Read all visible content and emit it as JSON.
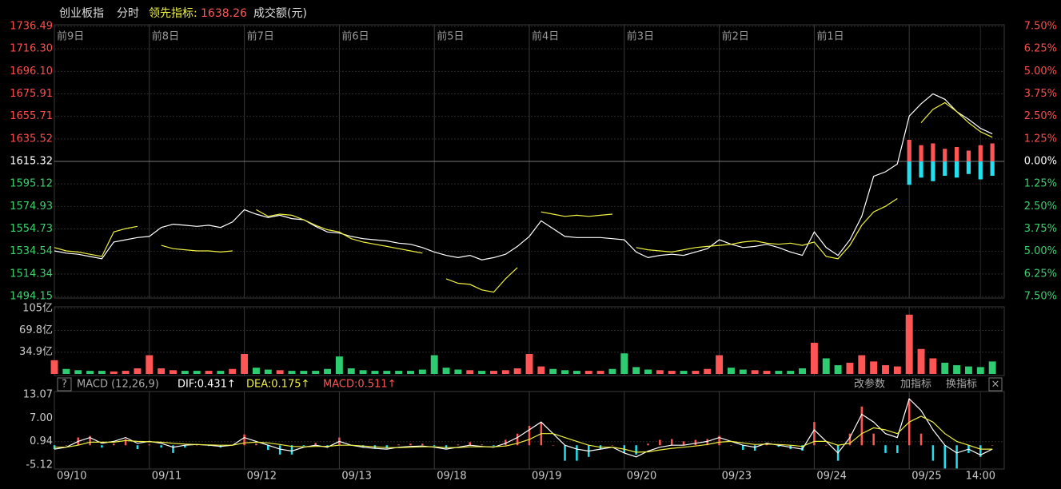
{
  "header": {
    "title": "创业板指",
    "mode": "分时",
    "indicator_label": "领先指标:",
    "indicator_value": 1638.26,
    "amount_label": "成交额(元)"
  },
  "toolbar": {
    "help": "?",
    "name": "MACD (12,26,9)",
    "dif": "DIF:0.431↑",
    "dea": "DEA:0.175↑",
    "macd": "MACD:0.511↑",
    "buttons": [
      "改参数",
      "加指标",
      "换指标"
    ],
    "close": "×"
  },
  "chart_data": [
    {
      "type": "line",
      "categories": [
        "前9日",
        "前8日",
        "前7日",
        "前6日",
        "前5日",
        "前4日",
        "前3日",
        "前2日",
        "前1日",
        null
      ],
      "x": [
        0,
        1,
        2,
        3,
        4,
        5,
        6,
        7,
        8,
        9,
        10,
        11,
        12,
        13,
        14,
        15,
        16,
        17,
        18,
        19,
        20,
        21,
        22,
        23,
        24,
        25,
        26,
        27,
        28,
        29,
        30,
        31,
        32,
        33,
        34,
        35,
        36,
        37,
        38,
        39,
        40,
        41,
        42,
        43,
        44,
        45,
        46,
        47,
        48,
        49,
        50,
        51,
        52,
        53,
        54,
        55,
        56,
        57,
        58,
        59,
        60,
        61,
        62,
        63,
        64,
        65,
        66,
        67,
        68,
        69,
        70,
        71,
        72,
        73,
        74,
        75,
        76,
        77,
        78,
        79
      ],
      "xlim": [
        0,
        80
      ],
      "ylim": [
        1494.15,
        1736.49
      ],
      "yticks": [
        1736.49,
        {
          "value": 1716.3,
          "label": "1716.30"
        },
        {
          "value": 1696.1,
          "label": "1696.10"
        },
        1675.91,
        1655.71,
        1635.52,
        1615.32,
        1595.12,
        1574.93,
        1554.73,
        1534.54,
        1514.34,
        1494.15
      ],
      "y2lim": [
        -7.5,
        7.5
      ],
      "y2ticks": [
        {
          "value": 7.5,
          "label": "7.50%"
        },
        {
          "value": 6.25,
          "label": "6.25%"
        },
        {
          "value": 5,
          "label": "5.00%"
        },
        {
          "value": 3.75,
          "label": "3.75%"
        },
        {
          "value": 2.5,
          "label": "2.50%"
        },
        {
          "value": 1.25,
          "label": "1.25%"
        },
        {
          "value": 0,
          "label": "0.00%"
        },
        {
          "value": -1.25,
          "label": "1.25%"
        },
        {
          "value": -2.5,
          "label": "2.50%"
        },
        {
          "value": -3.75,
          "label": "3.75%"
        },
        {
          "value": -5,
          "label": "5.00%"
        },
        {
          "value": -6.25,
          "label": "6.25%"
        },
        {
          "value": -7.5,
          "label": "7.50%"
        }
      ],
      "up_color": "#ff4d4d",
      "down_color": "#3bd16f",
      "grid": true,
      "series": [
        {
          "color": "#ffffff",
          "values": [
            1535,
            1533,
            1532,
            1530,
            1528,
            1543,
            1545,
            1547,
            1548,
            1556,
            1559,
            1558,
            1557,
            1558,
            1556,
            1561,
            1572,
            1568,
            1565,
            1567,
            1564,
            1563,
            1557,
            1552,
            1551,
            1548,
            1546,
            1545,
            1544,
            1542,
            1541,
            1538,
            1534,
            1531,
            1529,
            1531,
            1527,
            1529,
            1532,
            1539,
            1548,
            1562,
            1555,
            1548,
            1547,
            1547,
            1547,
            1546,
            1545,
            1534,
            1529,
            1531,
            1532,
            1531,
            1534,
            1537,
            1545,
            1541,
            1538,
            1539,
            1541,
            1538,
            1534,
            1531,
            1552,
            1538,
            1531,
            1545,
            1566,
            1602,
            1606,
            1613,
            1656,
            1667,
            1676,
            1671,
            1660,
            1653,
            1645,
            1640
          ]
        },
        {
          "color": "#f0f040",
          "values": [
            1538,
            1535,
            1534,
            1532,
            1530,
            1552,
            1555,
            1557,
            null,
            1540,
            1537,
            1536,
            1535,
            1535,
            1534,
            1535,
            null,
            1572,
            1566,
            1568,
            1567,
            1563,
            1558,
            1554,
            1552,
            1546,
            1543,
            1541,
            1539,
            1537,
            1535,
            1533,
            null,
            1510,
            1506,
            1505,
            1500,
            1498,
            1510,
            1520,
            null,
            1570,
            1568,
            1566,
            1567,
            1566,
            1567,
            1568,
            null,
            1538,
            1536,
            1535,
            1534,
            1536,
            1538,
            1539,
            1540,
            1541,
            1543,
            1544,
            1542,
            1541,
            1542,
            1540,
            1543,
            1530,
            1528,
            1540,
            1558,
            1570,
            1575,
            1582,
            null,
            1650,
            1662,
            1668,
            1660,
            1650,
            1642,
            1637
          ]
        },
        {
          "axis": "y2",
          "color": "#ff5555",
          "x": [
            72,
            73,
            74,
            75,
            76,
            77,
            78,
            79
          ],
          "values": [
            1.2,
            0.9,
            1.0,
            0.7,
            0.8,
            0.6,
            0.9,
            1.0
          ]
        },
        {
          "axis": "y2",
          "color": "#22e0f0",
          "x": [
            72,
            73,
            74,
            75,
            76,
            77,
            78,
            79
          ],
          "values": [
            -1.3,
            -0.9,
            -1.1,
            -0.8,
            -0.9,
            -0.7,
            -1.0,
            -0.8
          ]
        }
      ]
    },
    {
      "type": "bar",
      "x": [
        0,
        1,
        2,
        3,
        4,
        5,
        6,
        7,
        8,
        9,
        10,
        11,
        12,
        13,
        14,
        15,
        16,
        17,
        18,
        19,
        20,
        21,
        22,
        23,
        24,
        25,
        26,
        27,
        28,
        29,
        30,
        31,
        32,
        33,
        34,
        35,
        36,
        37,
        38,
        39,
        40,
        41,
        42,
        43,
        44,
        45,
        46,
        47,
        48,
        49,
        50,
        51,
        52,
        53,
        54,
        55,
        56,
        57,
        58,
        59,
        60,
        61,
        62,
        63,
        64,
        65,
        66,
        67,
        68,
        69,
        70,
        71,
        72,
        73,
        74,
        75,
        76,
        77,
        78,
        79
      ],
      "xlim": [
        0,
        80
      ],
      "ylim": [
        0,
        105
      ],
      "yticks": [
        {
          "value": 105,
          "label": "105亿"
        },
        {
          "value": 69.8,
          "label": "69.8亿"
        },
        {
          "value": 34.9,
          "label": "34.9亿"
        }
      ],
      "up_color": "#ff5555",
      "down_color": "#2ecc71",
      "values": [
        22,
        8,
        6,
        5,
        5,
        4,
        5,
        9,
        30,
        9,
        6,
        5,
        5,
        5,
        5,
        8,
        32,
        10,
        7,
        6,
        5,
        5,
        5,
        8,
        28,
        9,
        6,
        5,
        5,
        5,
        5,
        7,
        30,
        10,
        7,
        6,
        5,
        5,
        6,
        9,
        32,
        12,
        8,
        6,
        5,
        5,
        5,
        8,
        33,
        11,
        7,
        6,
        5,
        5,
        5,
        8,
        30,
        10,
        7,
        6,
        5,
        5,
        5,
        9,
        50,
        25,
        14,
        18,
        30,
        20,
        14,
        12,
        95,
        40,
        25,
        18,
        14,
        12,
        11,
        20
      ]
    },
    {
      "type": "line",
      "x": [
        0,
        1,
        2,
        3,
        4,
        5,
        6,
        7,
        8,
        9,
        10,
        11,
        12,
        13,
        14,
        15,
        16,
        17,
        18,
        19,
        20,
        21,
        22,
        23,
        24,
        25,
        26,
        27,
        28,
        29,
        30,
        31,
        32,
        33,
        34,
        35,
        36,
        37,
        38,
        39,
        40,
        41,
        42,
        43,
        44,
        45,
        46,
        47,
        48,
        49,
        50,
        51,
        52,
        53,
        54,
        55,
        56,
        57,
        58,
        59,
        60,
        61,
        62,
        63,
        64,
        65,
        66,
        67,
        68,
        69,
        70,
        71,
        72,
        73,
        74,
        75,
        76,
        77,
        78,
        79
      ],
      "xlim": [
        0,
        80
      ],
      "xticks": [
        {
          "value": 0,
          "label": "09/10"
        },
        {
          "value": 8,
          "label": "09/11"
        },
        {
          "value": 16,
          "label": "09/12"
        },
        {
          "value": 24,
          "label": "09/13"
        },
        {
          "value": 32,
          "label": "09/18"
        },
        {
          "value": 40,
          "label": "09/19"
        },
        {
          "value": 48,
          "label": "09/20"
        },
        {
          "value": 56,
          "label": "09/23"
        },
        {
          "value": 64,
          "label": "09/24"
        },
        {
          "value": 72,
          "label": "09/25"
        },
        {
          "value": 78,
          "label": "14:00"
        }
      ],
      "ylim": [
        -5.73,
        13.47
      ],
      "yticks": [
        13.07,
        {
          "value": 7,
          "label": "7.00"
        },
        0.94,
        -5.12
      ],
      "series": [
        {
          "type": "bar",
          "up_color": "#ff5555",
          "down_color": "#22e0f0",
          "values": [
            -1,
            0,
            2,
            2.4,
            -0.6,
            0.4,
            1.6,
            -1,
            0.2,
            -0.6,
            -2,
            -0.6,
            0,
            -0.2,
            -0.6,
            0,
            2.8,
            0.4,
            -1.2,
            -2.4,
            -2.4,
            -0.2,
            0.6,
            -0.4,
            2,
            0,
            -0.6,
            -0.8,
            -0.8,
            0.2,
            0.4,
            0.4,
            -0.2,
            -0.8,
            0.2,
            0.8,
            0.2,
            -0.2,
            1.4,
            3,
            5,
            6,
            0,
            -4,
            -4,
            -3,
            -1,
            0,
            -2,
            -2.4,
            0.4,
            1.4,
            1.6,
            1,
            1.4,
            1.6,
            2.4,
            0,
            -1.2,
            -1.4,
            0.4,
            -0.4,
            -1,
            -1.4,
            6,
            0,
            -4,
            3,
            10,
            3,
            -2,
            -2,
            12,
            3,
            -4,
            -6,
            -6,
            -2,
            -3,
            0
          ]
        },
        {
          "color": "#ffffff",
          "values": [
            -1,
            -0.5,
            1,
            2,
            0.5,
            1,
            2,
            0.5,
            1,
            0.5,
            -0.5,
            0,
            0.2,
            0,
            -0.3,
            0,
            2,
            1,
            0,
            -1,
            -1.5,
            -0.5,
            0,
            -0.5,
            1,
            0,
            -0.5,
            -0.8,
            -1,
            -0.5,
            -0.3,
            -0.2,
            -0.5,
            -1,
            -0.5,
            0,
            -0.3,
            -0.5,
            0.5,
            2,
            4,
            6,
            3,
            0,
            -1,
            -1.5,
            -1,
            -0.5,
            -2,
            -3,
            -1.5,
            -0.5,
            0,
            0,
            0.5,
            1,
            2,
            1,
            0,
            -0.5,
            0.5,
            0,
            -0.5,
            -1,
            4,
            1,
            -2,
            2,
            8,
            6,
            3,
            2,
            12,
            9,
            4,
            0,
            -2,
            -1,
            -2.5,
            -1
          ]
        },
        {
          "color": "#f0f040",
          "values": [
            -0.5,
            -0.5,
            0,
            0.8,
            0.8,
            0.8,
            1.2,
            1,
            0.9,
            0.8,
            0.5,
            0.3,
            0.2,
            0.1,
            0,
            0,
            0.6,
            0.8,
            0.6,
            0.2,
            -0.3,
            -0.4,
            -0.3,
            -0.3,
            0,
            0,
            -0.2,
            -0.4,
            -0.6,
            -0.6,
            -0.5,
            -0.4,
            -0.4,
            -0.6,
            -0.6,
            -0.4,
            -0.4,
            -0.4,
            -0.2,
            0.5,
            1.5,
            3,
            3,
            2,
            1,
            0,
            -0.5,
            -0.5,
            -1,
            -1.8,
            -1.7,
            -1.2,
            -0.8,
            -0.5,
            -0.2,
            0.2,
            0.8,
            1,
            0.6,
            0.2,
            0.3,
            0.2,
            0,
            -0.3,
            1,
            1,
            0,
            0.5,
            3,
            4.5,
            4,
            3,
            6,
            7.5,
            6,
            3,
            1,
            0,
            -1,
            -1
          ]
        }
      ]
    }
  ]
}
